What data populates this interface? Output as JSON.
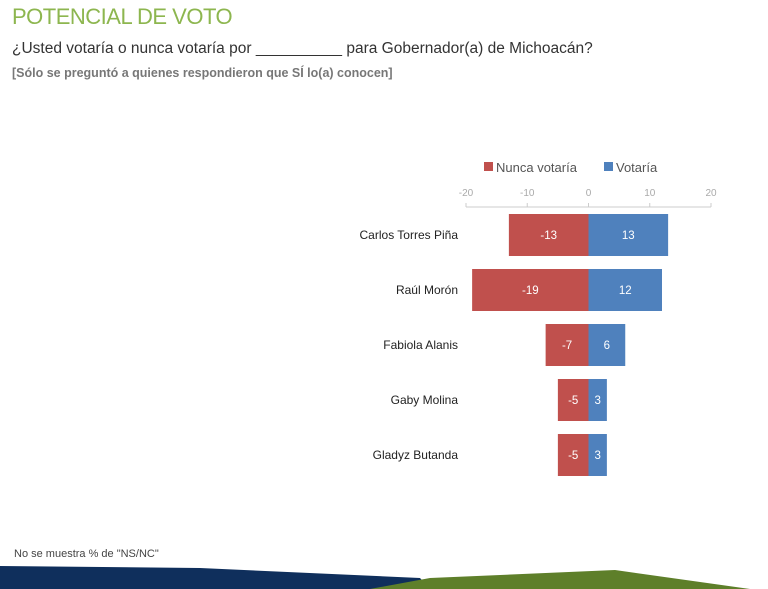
{
  "header": {
    "title": "POTENCIAL DE VOTO",
    "question": "¿Usted votaría o nunca votaría por __________ para Gobernador(a) de Michoacán?",
    "note": "[Sólo se preguntó a quienes respondieron que SÍ lo(a) conocen]"
  },
  "footnote": "No se muestra % de \"NS/NC\"",
  "chart_data": {
    "type": "bar",
    "orientation": "horizontal-diverging",
    "categories": [
      "Carlos Torres Piña",
      "Raúl Morón",
      "Fabiola Alanis",
      "Gaby Molina",
      "Gladyz Butanda"
    ],
    "series": [
      {
        "name": "Nunca votaría",
        "values": [
          -13,
          -19,
          -7,
          -5,
          -5
        ],
        "color": "#c0504d"
      },
      {
        "name": "Votaría",
        "values": [
          13,
          12,
          6,
          3,
          3
        ],
        "color": "#4f81bd"
      }
    ],
    "xlim": [
      -20,
      20
    ],
    "xticks": [
      -20,
      -10,
      0,
      10,
      20
    ],
    "legend": "top",
    "grid": false
  }
}
